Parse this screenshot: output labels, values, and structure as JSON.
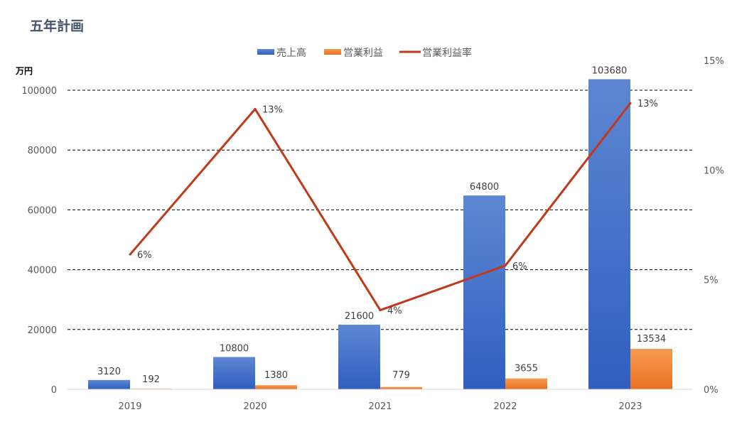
{
  "title": "五年計画",
  "chart_data": {
    "type": "bar",
    "title": "五年計画",
    "categories": [
      "2019",
      "2020",
      "2021",
      "2022",
      "2023"
    ],
    "y_unit": "万円",
    "ylim": [
      0,
      100000
    ],
    "y_ticks": [
      0,
      20000,
      40000,
      60000,
      80000,
      100000
    ],
    "y2lim": [
      0,
      15
    ],
    "y2_ticks": [
      "0%",
      "5%",
      "10%",
      "15%"
    ],
    "grid": "dashed horizontal",
    "legend_position": "top",
    "series": [
      {
        "name": "売上高",
        "type": "bar",
        "axis": "left",
        "color": "#4472c4",
        "values": [
          3120,
          10800,
          21600,
          64800,
          103680
        ],
        "labels": [
          "3120",
          "10800",
          "21600",
          "64800",
          "103680"
        ]
      },
      {
        "name": "営業利益",
        "type": "bar",
        "axis": "left",
        "color": "#ed7d31",
        "values": [
          192,
          1380,
          779,
          3655,
          13534
        ],
        "labels": [
          "192",
          "1380",
          "779",
          "3655",
          "13534"
        ]
      },
      {
        "name": "営業利益率",
        "type": "line",
        "axis": "right",
        "color": "#c0391b",
        "values": [
          6.15,
          12.78,
          3.61,
          5.64,
          13.05
        ],
        "labels": [
          "6%",
          "13%",
          "4%",
          "6%",
          "13%"
        ]
      }
    ]
  }
}
